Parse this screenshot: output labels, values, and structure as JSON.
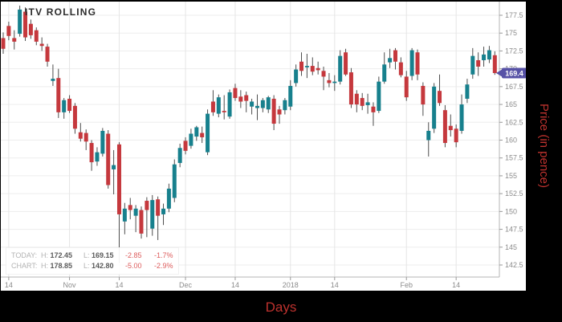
{
  "title": "ITV ROLLING",
  "legend": {
    "rows": [
      {
        "name": "TODAY:",
        "h_label": "H:",
        "h_value": "172.45",
        "l_label": "L:",
        "l_value": "169.15",
        "change": "-2.85",
        "change_pct": "-1.7%"
      },
      {
        "name": "CHART:",
        "h_label": "H:",
        "h_value": "178.85",
        "l_label": "L:",
        "l_value": "142.80",
        "change": "-5.00",
        "change_pct": "-2.9%"
      }
    ]
  },
  "x_axis": {
    "title": "Days",
    "ticks": [
      {
        "label": "14",
        "index": 1
      },
      {
        "label": "Nov",
        "index": 12
      },
      {
        "label": "14",
        "index": 21
      },
      {
        "label": "Dec",
        "index": 33
      },
      {
        "label": "14",
        "index": 42
      },
      {
        "label": "2018",
        "index": 52
      },
      {
        "label": "14",
        "index": 60
      },
      {
        "label": "Feb",
        "index": 73
      },
      {
        "label": "14",
        "index": 82
      }
    ]
  },
  "y_axis": {
    "title": "Price (in pence)",
    "min": 142.5,
    "max": 177.5,
    "step": 2.5,
    "tick_labels": [
      "177.5",
      "175",
      "172.5",
      "170",
      "167.5",
      "165",
      "162.5",
      "160",
      "157.5",
      "155",
      "152.5",
      "150",
      "147.5",
      "145",
      "142.5"
    ]
  },
  "price_badge": {
    "value": "169.4",
    "color": "#5752A6"
  },
  "colors": {
    "up": "#17808D",
    "down": "#C5383D",
    "wick": "#4D4D4D",
    "grid_h": "#EDEDED",
    "grid_v": "#E5E5E5",
    "axis_line": "#B5B5B5",
    "tick": "#999999",
    "tick_text": "#8C8C8C"
  },
  "chart_data": {
    "type": "candlestick",
    "title": "ITV ROLLING",
    "xlabel": "Days",
    "ylabel": "Price (in pence)",
    "ylim": [
      142.5,
      177.5
    ],
    "grid": true,
    "last_price": 169.4,
    "today_high": 172.45,
    "today_low": 169.15,
    "chart_high": 178.85,
    "chart_low": 142.8,
    "candles_ohlc": [
      [
        174.3,
        175.1,
        172.1,
        172.8
      ],
      [
        176.0,
        176.6,
        174.0,
        174.6
      ],
      [
        174.3,
        175.4,
        172.7,
        173.8
      ],
      [
        174.9,
        178.85,
        174.5,
        178.3
      ],
      [
        178.0,
        178.6,
        173.9,
        174.4
      ],
      [
        176.3,
        176.9,
        174.2,
        174.7
      ],
      [
        175.4,
        175.8,
        173.3,
        173.8
      ],
      [
        173.5,
        174.4,
        172.5,
        173.2
      ],
      [
        173.1,
        173.5,
        170.3,
        171.0
      ],
      [
        168.3,
        170.6,
        167.6,
        168.6
      ],
      [
        168.7,
        170.0,
        163.1,
        163.9
      ],
      [
        163.9,
        165.9,
        163.0,
        165.6
      ],
      [
        165.8,
        166.3,
        163.8,
        164.1
      ],
      [
        164.8,
        165.2,
        160.9,
        161.6
      ],
      [
        161.1,
        162.4,
        159.8,
        160.2
      ],
      [
        161.0,
        161.5,
        158.6,
        159.8
      ],
      [
        159.6,
        160.0,
        155.7,
        156.9
      ],
      [
        157.0,
        159.0,
        156.4,
        158.3
      ],
      [
        158.1,
        161.7,
        157.7,
        161.3
      ],
      [
        160.9,
        161.4,
        153.2,
        153.7
      ],
      [
        155.9,
        158.6,
        152.4,
        156.5
      ],
      [
        159.4,
        159.7,
        142.8,
        149.6
      ],
      [
        148.6,
        151.2,
        146.8,
        150.4
      ],
      [
        150.9,
        151.9,
        148.9,
        150.2
      ],
      [
        149.4,
        150.9,
        147.1,
        150.4
      ],
      [
        150.2,
        150.7,
        146.2,
        146.9
      ],
      [
        151.5,
        152.0,
        146.4,
        150.2
      ],
      [
        147.6,
        152.3,
        146.6,
        151.6
      ],
      [
        151.7,
        152.1,
        146.0,
        149.4
      ],
      [
        149.6,
        151.1,
        148.1,
        150.4
      ],
      [
        150.4,
        153.9,
        149.9,
        153.2
      ],
      [
        151.9,
        157.3,
        151.3,
        156.6
      ],
      [
        156.8,
        159.5,
        156.2,
        158.9
      ],
      [
        159.9,
        160.4,
        158.0,
        158.5
      ],
      [
        159.2,
        161.6,
        158.8,
        160.9
      ],
      [
        160.5,
        162.0,
        159.9,
        161.8
      ],
      [
        161.0,
        161.9,
        159.6,
        160.4
      ],
      [
        158.3,
        164.3,
        157.9,
        163.7
      ],
      [
        165.4,
        167.0,
        163.4,
        163.9
      ],
      [
        163.7,
        166.4,
        163.2,
        166.0
      ],
      [
        164.1,
        166.3,
        162.9,
        163.9
      ],
      [
        163.3,
        167.1,
        163.0,
        166.7
      ],
      [
        167.3,
        167.9,
        165.5,
        165.9
      ],
      [
        166.1,
        167.0,
        164.5,
        165.4
      ],
      [
        166.3,
        166.8,
        163.9,
        165.5
      ],
      [
        164.7,
        165.8,
        163.6,
        165.4
      ],
      [
        164.5,
        166.4,
        162.8,
        164.8
      ],
      [
        164.5,
        165.9,
        163.9,
        165.6
      ],
      [
        164.3,
        166.2,
        163.8,
        166.0
      ],
      [
        165.8,
        166.3,
        161.4,
        162.3
      ],
      [
        164.3,
        164.8,
        162.3,
        163.6
      ],
      [
        164.2,
        165.9,
        163.6,
        165.6
      ],
      [
        164.7,
        168.4,
        164.2,
        167.6
      ],
      [
        168.0,
        170.6,
        167.5,
        169.9
      ],
      [
        171.0,
        172.3,
        169.0,
        169.7
      ],
      [
        170.2,
        172.1,
        168.7,
        170.4
      ],
      [
        170.4,
        171.6,
        169.1,
        169.6
      ],
      [
        170.1,
        171.0,
        169.2,
        169.8
      ],
      [
        169.7,
        170.3,
        167.0,
        168.9
      ],
      [
        168.4,
        169.4,
        167.4,
        168.0
      ],
      [
        168.0,
        169.1,
        166.9,
        168.2
      ],
      [
        168.2,
        172.6,
        167.8,
        171.8
      ],
      [
        172.3,
        172.8,
        169.0,
        169.2
      ],
      [
        169.5,
        170.1,
        164.5,
        165.0
      ],
      [
        166.5,
        167.0,
        163.9,
        165.0
      ],
      [
        165.9,
        166.6,
        164.2,
        164.8
      ],
      [
        164.9,
        166.5,
        163.7,
        165.3
      ],
      [
        164.7,
        165.3,
        162.0,
        163.9
      ],
      [
        164.1,
        168.9,
        163.8,
        168.2
      ],
      [
        168.2,
        172.3,
        167.9,
        170.6
      ],
      [
        170.9,
        172.8,
        170.1,
        171.5
      ],
      [
        172.6,
        172.9,
        169.9,
        171.0
      ],
      [
        170.9,
        171.6,
        168.8,
        169.1
      ],
      [
        168.9,
        169.7,
        165.5,
        166.0
      ],
      [
        169.0,
        172.9,
        168.4,
        172.6
      ],
      [
        172.3,
        172.7,
        168.4,
        169.2
      ],
      [
        167.6,
        168.1,
        163.4,
        165.0
      ],
      [
        160.0,
        162.5,
        157.7,
        161.3
      ],
      [
        161.6,
        168.0,
        161.0,
        167.5
      ],
      [
        166.9,
        169.2,
        164.8,
        165.2
      ],
      [
        164.2,
        164.9,
        159.0,
        159.6
      ],
      [
        162.0,
        163.6,
        160.5,
        161.4
      ],
      [
        161.6,
        162.2,
        159.0,
        159.7
      ],
      [
        161.3,
        166.4,
        160.9,
        165.0
      ],
      [
        165.8,
        168.6,
        165.2,
        167.8
      ],
      [
        169.2,
        172.9,
        168.6,
        171.8
      ],
      [
        171.2,
        172.3,
        169.0,
        170.3
      ],
      [
        171.2,
        173.1,
        170.3,
        172.0
      ],
      [
        171.3,
        173.2,
        170.8,
        172.6
      ],
      [
        171.9,
        172.45,
        169.15,
        169.4
      ]
    ]
  }
}
